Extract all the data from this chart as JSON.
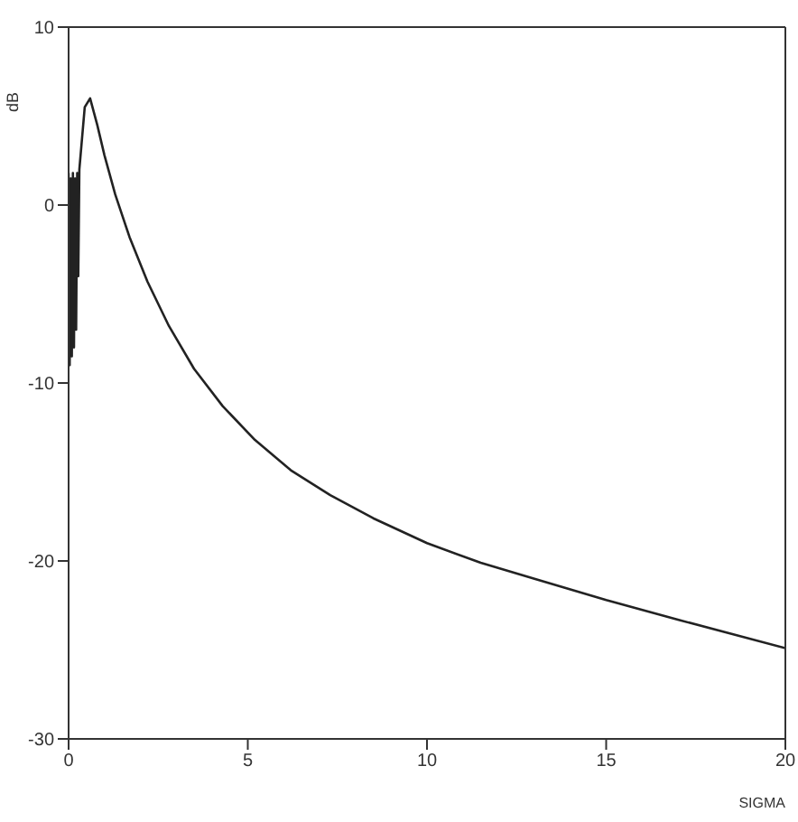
{
  "chart_data": {
    "type": "line",
    "xlabel": "SIGMA",
    "ylabel": "dB",
    "series": [
      {
        "color": "#222222",
        "x": [
          0,
          0.03,
          0.06,
          0.09,
          0.12,
          0.15,
          0.18,
          0.21,
          0.24,
          0.27,
          0.3,
          0.45,
          0.6,
          0.8,
          1.0,
          1.3,
          1.7,
          2.2,
          2.8,
          3.5,
          4.3,
          5.2,
          6.2,
          7.3,
          8.5,
          10,
          11.5,
          13,
          15,
          17,
          18.5,
          20
        ],
        "values": [
          1.8,
          -9,
          1.5,
          -8.5,
          1.8,
          -8,
          1.5,
          -7,
          1.8,
          -4,
          2,
          5.5,
          6,
          4.5,
          2.8,
          0.6,
          -1.8,
          -4.3,
          -6.8,
          -9.2,
          -11.3,
          -13.2,
          -14.9,
          -16.3,
          -17.6,
          -19,
          -20.1,
          -21,
          -22.2,
          -23.3,
          -24.1,
          -24.9
        ]
      }
    ],
    "xlim": [
      0,
      20
    ],
    "xticks": [
      0,
      5,
      10,
      15,
      20
    ],
    "ylim": [
      -30,
      10
    ],
    "yticks": [
      -30,
      -20,
      -10,
      0,
      10
    ],
    "marker": "none",
    "line_style": "solid"
  }
}
